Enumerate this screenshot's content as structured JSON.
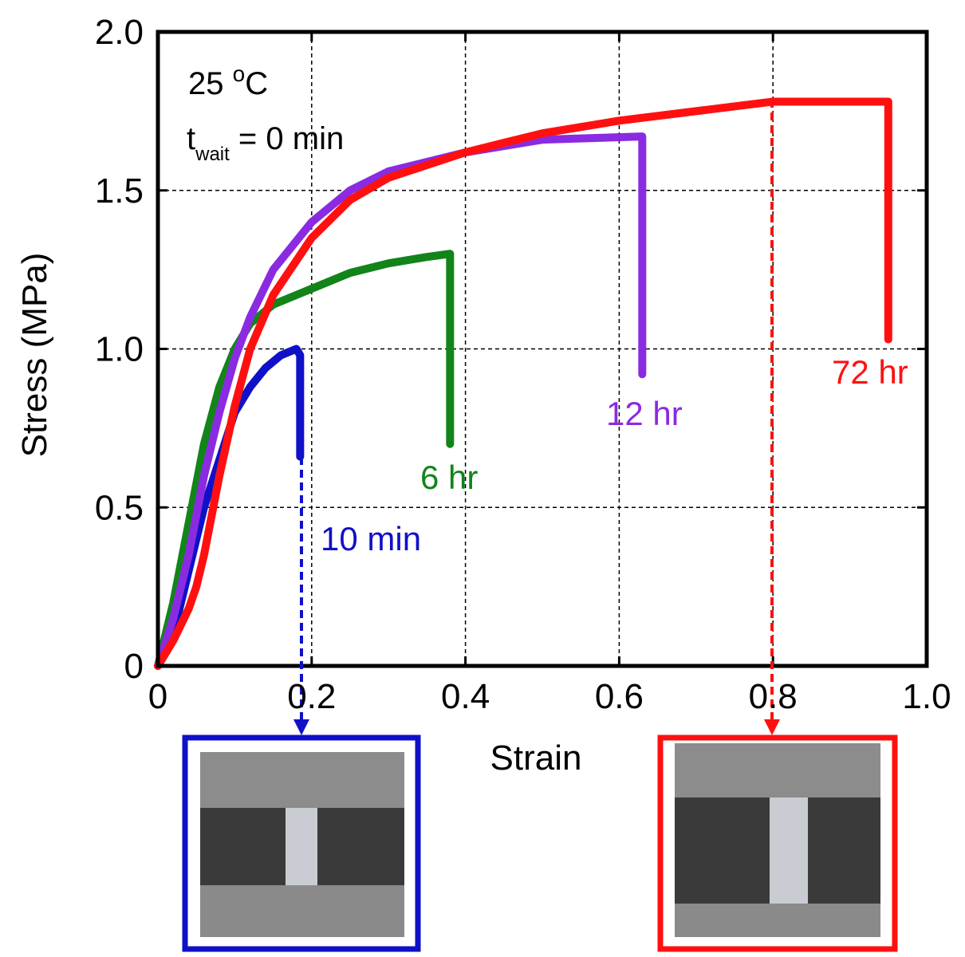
{
  "chart_data": {
    "type": "line",
    "xlabel": "Strain",
    "ylabel": "Stress (MPa)",
    "xlim": [
      0,
      1.0
    ],
    "ylim": [
      0,
      2.0
    ],
    "xticks": [
      0,
      0.2,
      0.4,
      0.6,
      0.8,
      {
        "value": 1.0,
        "label": "1.0"
      }
    ],
    "yticks": [
      0,
      0.5,
      {
        "value": 1.0,
        "label": "1.0"
      },
      1.5,
      {
        "value": 2.0,
        "label": "2.0"
      }
    ],
    "grid": true,
    "temperature": {
      "number": "25 ",
      "sup": "o",
      "unit": "C"
    },
    "wait": {
      "base": "t",
      "sub": "wait",
      "rest": " = 0 min"
    },
    "series": [
      {
        "name": "10 min",
        "color": "#1010c8",
        "x": [
          0,
          0.02,
          0.04,
          0.06,
          0.08,
          0.1,
          0.12,
          0.14,
          0.16,
          0.18,
          0.185,
          0.185,
          0.185,
          0.185
        ],
        "values": [
          0,
          0.1,
          0.3,
          0.5,
          0.65,
          0.8,
          0.88,
          0.94,
          0.98,
          1.0,
          0.98,
          0.9,
          0.8,
          0.66
        ]
      },
      {
        "name": "6 hr",
        "color": "#12841a",
        "x": [
          0,
          0.02,
          0.04,
          0.06,
          0.08,
          0.1,
          0.12,
          0.15,
          0.2,
          0.25,
          0.3,
          0.35,
          0.38,
          0.38
        ],
        "values": [
          0,
          0.2,
          0.45,
          0.7,
          0.88,
          1.0,
          1.08,
          1.14,
          1.19,
          1.24,
          1.27,
          1.29,
          1.3,
          0.7
        ]
      },
      {
        "name": "12 hr",
        "color": "#8a2be2",
        "x": [
          0,
          0.02,
          0.04,
          0.06,
          0.08,
          0.1,
          0.12,
          0.15,
          0.2,
          0.25,
          0.3,
          0.4,
          0.5,
          0.63,
          0.63,
          0.63
        ],
        "values": [
          0,
          0.15,
          0.35,
          0.6,
          0.8,
          0.97,
          1.1,
          1.25,
          1.4,
          1.5,
          1.56,
          1.62,
          1.66,
          1.67,
          1.57,
          0.92
        ]
      },
      {
        "name": "72 hr",
        "color": "#ff1010",
        "x": [
          0,
          0.02,
          0.04,
          0.05,
          0.06,
          0.08,
          0.1,
          0.12,
          0.15,
          0.2,
          0.25,
          0.3,
          0.4,
          0.5,
          0.6,
          0.7,
          0.8,
          0.95,
          0.95,
          0.95
        ],
        "values": [
          0,
          0.08,
          0.18,
          0.25,
          0.35,
          0.6,
          0.82,
          1.0,
          1.17,
          1.35,
          1.47,
          1.54,
          1.62,
          1.68,
          1.72,
          1.75,
          1.78,
          1.78,
          1.74,
          1.03
        ]
      }
    ]
  }
}
